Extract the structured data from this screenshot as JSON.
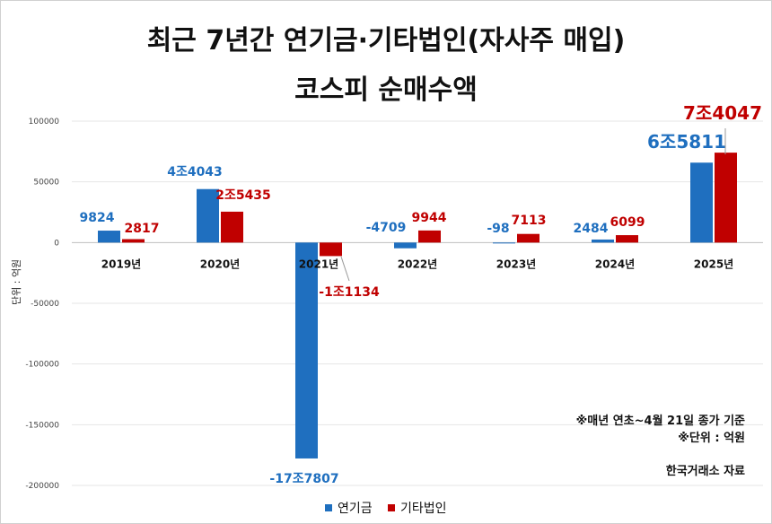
{
  "title_line1": "최근 7년간 연기금·기타법인(자사주 매입)",
  "title_line2": "코스피 순매수액",
  "ylabel": "단위 : 억원",
  "notes": {
    "line1": "※매년 연초~4월 21일 종가 기준",
    "line2": "※단위 : 억원",
    "source": "한국거래소 자료"
  },
  "legend": {
    "series1": "연기금",
    "series2": "기타법인"
  },
  "colors": {
    "series1": "#1f6fbf",
    "series2": "#c00000",
    "label1": "#1f6fbf",
    "label2": "#c00000"
  },
  "chart_data": {
    "type": "bar",
    "categories": [
      "2019년",
      "2020년",
      "2021년",
      "2022년",
      "2023년",
      "2024년",
      "2025년"
    ],
    "series": [
      {
        "name": "연기금",
        "values": [
          9824,
          44043,
          -177807,
          -4709,
          -98,
          2484,
          65811
        ],
        "labels": [
          "9824",
          "4조4043",
          "-17조7807",
          "-4709",
          "-98",
          "2484",
          "6조5811"
        ]
      },
      {
        "name": "기타법인",
        "values": [
          2817,
          25435,
          -11134,
          9944,
          7113,
          6099,
          74047
        ],
        "labels": [
          "2817",
          "2조5435",
          "-1조1134",
          "9944",
          "7113",
          "6099",
          "7조4047"
        ]
      }
    ],
    "ylim": [
      -200000,
      100000
    ],
    "yticks": [
      "100000",
      "50000",
      "0",
      "-50000",
      "-100000",
      "-150000",
      "-200000"
    ],
    "grid": true,
    "legend": "bottom-center"
  }
}
